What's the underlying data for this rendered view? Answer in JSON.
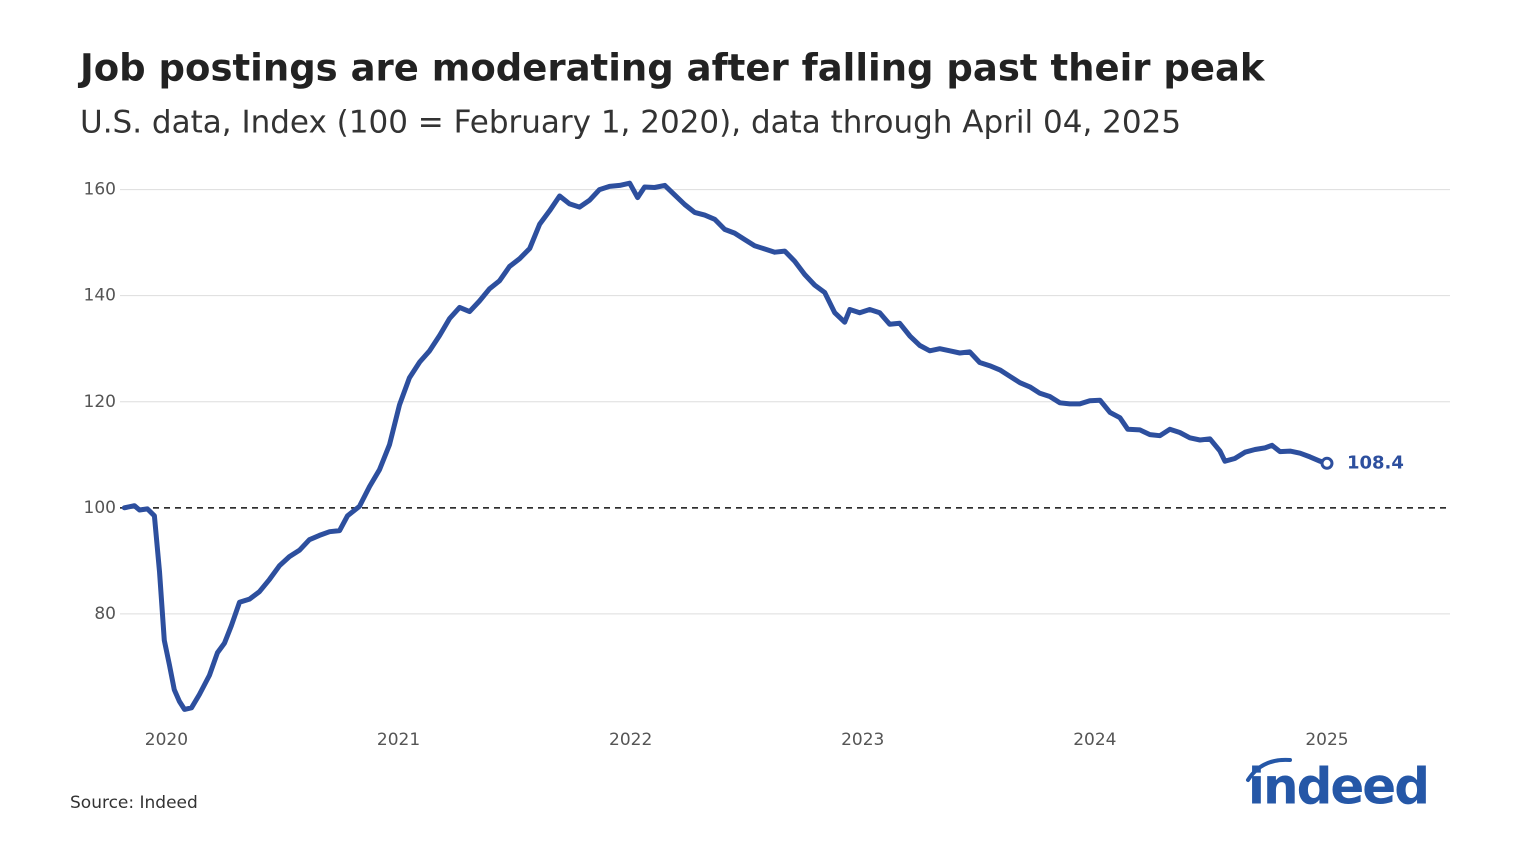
{
  "chart_data": {
    "type": "line",
    "title": "Job postings are moderating after falling past their peak",
    "subtitle": "U.S. data, Index (100 = February 1, 2020), data through April 04, 2025",
    "source": "Source: Indeed",
    "logo": "indeed",
    "color": "#2d4f9e",
    "reference_line": 100,
    "grid": true,
    "end_marker": true,
    "xlim": [
      2019.8,
      2025.53
    ],
    "xticks": [
      2020,
      2021,
      2022,
      2023,
      2024,
      2025
    ],
    "ylim": [
      60,
      162
    ],
    "yticks": [
      80,
      100,
      120,
      140,
      160
    ],
    "x": [
      2019.819,
      2019.862,
      2019.884,
      2019.918,
      2019.948,
      2019.97,
      2019.991,
      2020.013,
      2020.034,
      2020.056,
      2020.078,
      2020.108,
      2020.142,
      2020.185,
      2020.22,
      2020.25,
      2020.28,
      2020.315,
      2020.358,
      2020.401,
      2020.444,
      2020.487,
      2020.53,
      2020.573,
      2020.616,
      2020.659,
      2020.703,
      2020.746,
      2020.78,
      2020.832,
      2020.875,
      2020.918,
      2020.961,
      2021.004,
      2021.047,
      2021.091,
      2021.134,
      2021.177,
      2021.22,
      2021.263,
      2021.306,
      2021.349,
      2021.392,
      2021.435,
      2021.478,
      2021.522,
      2021.565,
      2021.608,
      2021.651,
      2021.694,
      2021.737,
      2021.78,
      2021.823,
      2021.866,
      2021.909,
      2021.953,
      2021.996,
      2022.03,
      2022.06,
      2022.103,
      2022.147,
      2022.19,
      2022.233,
      2022.276,
      2022.319,
      2022.362,
      2022.405,
      2022.448,
      2022.491,
      2022.534,
      2022.578,
      2022.621,
      2022.664,
      2022.707,
      2022.75,
      2022.793,
      2022.836,
      2022.879,
      2022.922,
      2022.944,
      2022.987,
      2023.03,
      2023.073,
      2023.116,
      2023.159,
      2023.203,
      2023.246,
      2023.289,
      2023.332,
      2023.375,
      2023.418,
      2023.461,
      2023.504,
      2023.547,
      2023.591,
      2023.634,
      2023.677,
      2023.72,
      2023.763,
      2023.806,
      2023.849,
      2023.892,
      2023.935,
      2023.978,
      2024.022,
      2024.065,
      2024.108,
      2024.142,
      2024.194,
      2024.237,
      2024.28,
      2024.323,
      2024.366,
      2024.409,
      2024.453,
      2024.496,
      2024.539,
      2024.56,
      2024.603,
      2024.647,
      2024.69,
      2024.733,
      2024.763,
      2024.797,
      2024.841,
      2024.884,
      2024.927,
      2024.97,
      2025.0
    ],
    "values": [
      100,
      100.4,
      99.6,
      99.8,
      98.5,
      88,
      75,
      70.4,
      65.7,
      63.5,
      62,
      62.3,
      64.8,
      68.4,
      72.7,
      74.5,
      77.8,
      82.2,
      82.8,
      84.2,
      86.5,
      89.1,
      90.8,
      92,
      94,
      94.8,
      95.5,
      95.7,
      98.5,
      100.3,
      104,
      107.2,
      111.9,
      119.4,
      124.5,
      127.5,
      129.6,
      132.5,
      135.7,
      137.8,
      137,
      139,
      141.3,
      142.8,
      145.5,
      147,
      148.9,
      153.5,
      156,
      158.8,
      157.3,
      156.7,
      158,
      160,
      160.6,
      160.8,
      161.2,
      158.5,
      160.5,
      160.4,
      160.8,
      159,
      157.2,
      155.7,
      155.2,
      154.4,
      152.5,
      151.8,
      150.6,
      149.4,
      148.8,
      148.2,
      148.4,
      146.5,
      144,
      142,
      140.6,
      136.8,
      135,
      137.4,
      136.8,
      137.4,
      136.8,
      134.6,
      134.8,
      132.4,
      130.6,
      129.6,
      130,
      129.6,
      129.2,
      129.4,
      127.4,
      126.8,
      126,
      124.8,
      123.6,
      122.8,
      121.6,
      121,
      119.8,
      119.6,
      119.6,
      120.2,
      120.3,
      118,
      117,
      114.8,
      114.7,
      113.8,
      113.6,
      114.8,
      114.2,
      113.2,
      112.8,
      113,
      110.7,
      108.8,
      109.3,
      110.5,
      111,
      111.3,
      111.8,
      110.6,
      110.7,
      110.3,
      109.6,
      108.8,
      108.4
    ]
  }
}
